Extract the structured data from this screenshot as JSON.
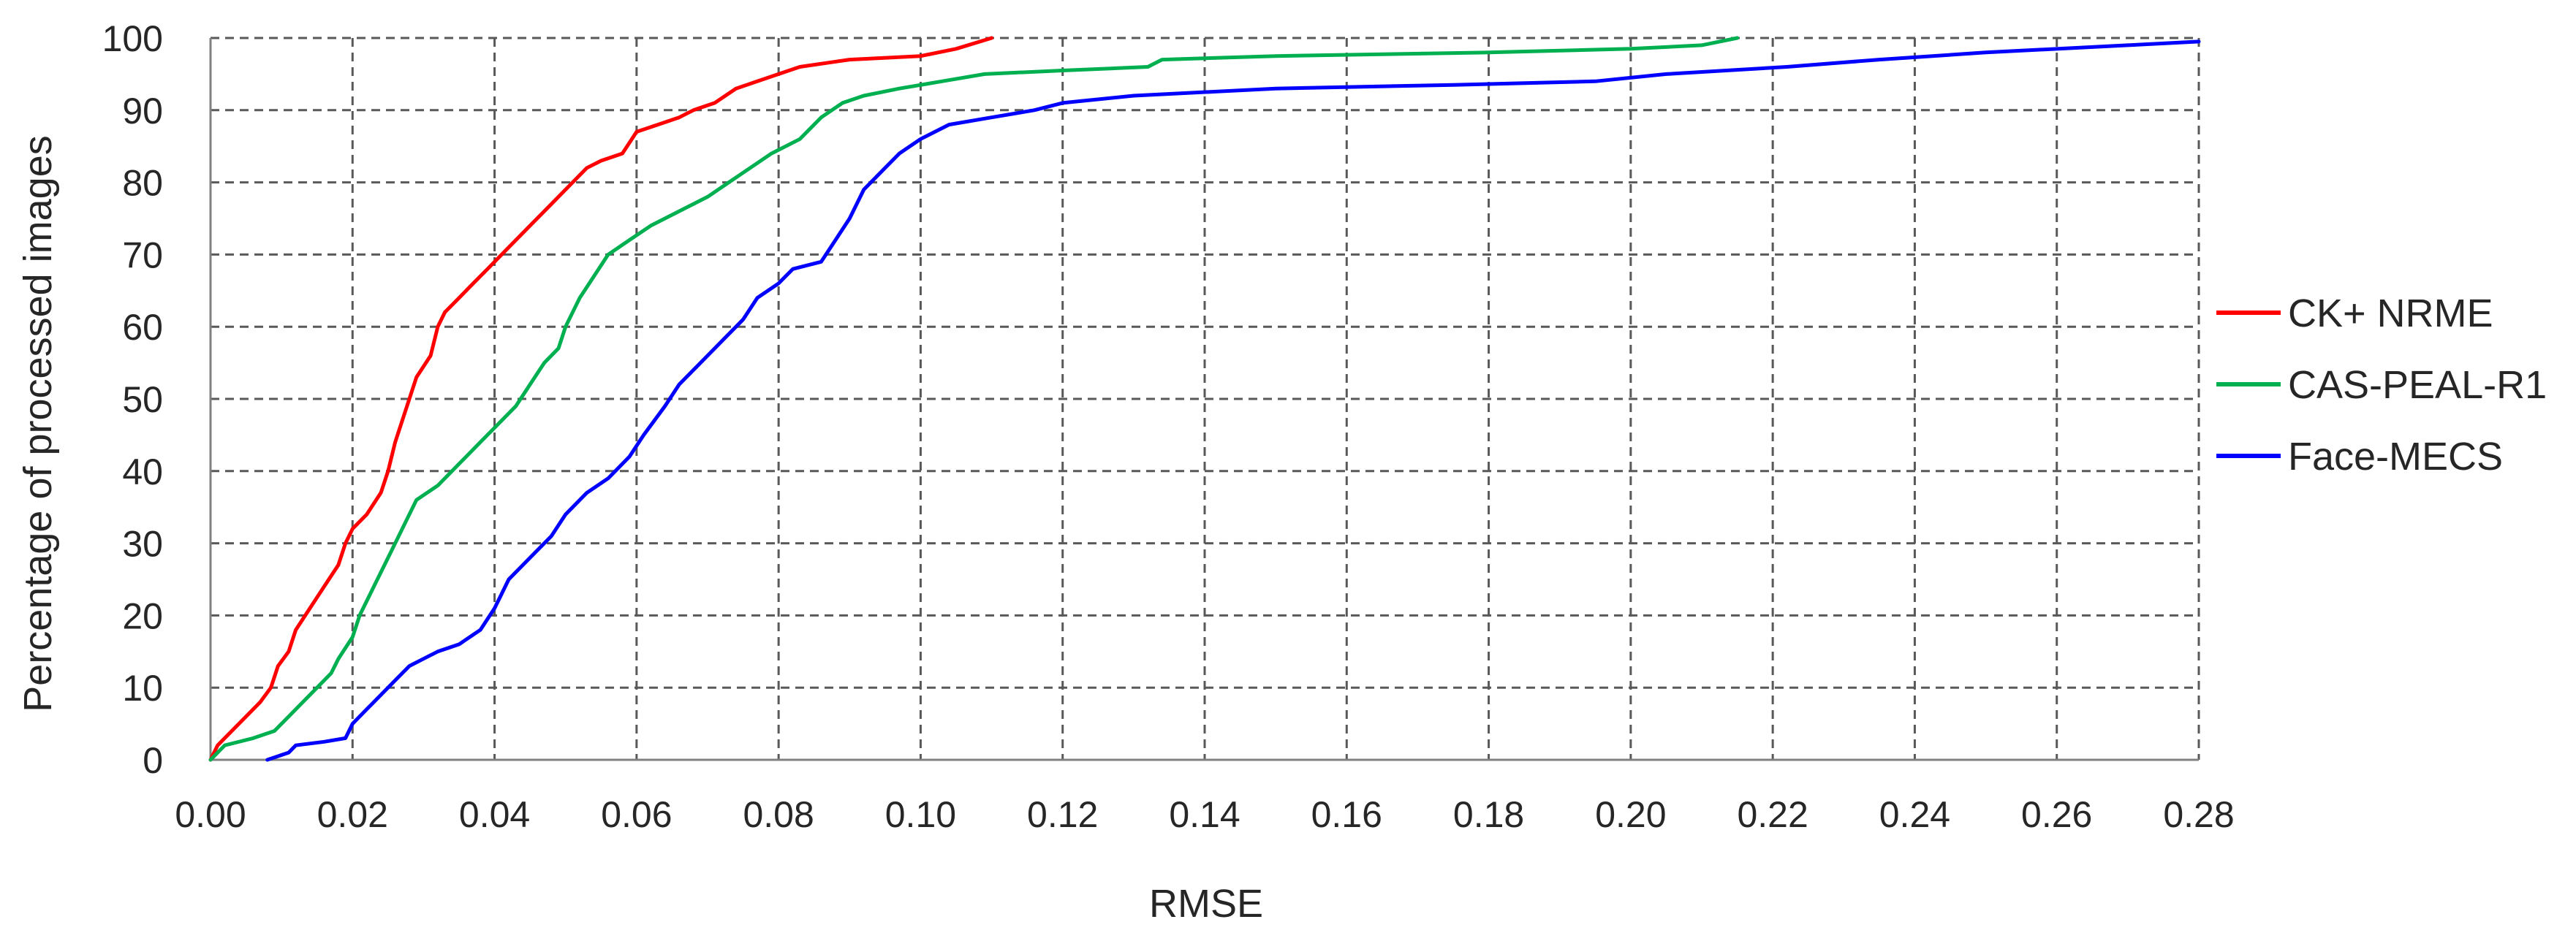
{
  "chart_data": {
    "type": "line",
    "title": "",
    "xlabel": "RMSE",
    "ylabel": "Percentage of processed images",
    "xlim": [
      0,
      0.28
    ],
    "ylim": [
      0,
      100
    ],
    "x_ticks": [
      0,
      0.02,
      0.04,
      0.06,
      0.08,
      0.1,
      0.12,
      0.14,
      0.16,
      0.18,
      0.2,
      0.22,
      0.24,
      0.26,
      0.28
    ],
    "x_tick_labels": [
      "0.00",
      "0.02",
      "0.04",
      "0.06",
      "0.08",
      "0.10",
      "0.12",
      "0.14",
      "0.16",
      "0.18",
      "0.20",
      "0.22",
      "0.24",
      "0.26",
      "0.28"
    ],
    "y_ticks": [
      0,
      10,
      20,
      30,
      40,
      50,
      60,
      70,
      80,
      90,
      100
    ],
    "y_tick_labels": [
      "0",
      "10",
      "20",
      "30",
      "40",
      "50",
      "60",
      "70",
      "80",
      "90",
      "100"
    ],
    "grid": true,
    "grid_style": "dashed",
    "legend_position": "right",
    "series": [
      {
        "name": "CK+ NRME",
        "color": "#ff0000",
        "points": [
          [
            0.0,
            0
          ],
          [
            0.001,
            2
          ],
          [
            0.003,
            4
          ],
          [
            0.005,
            6
          ],
          [
            0.007,
            8
          ],
          [
            0.0085,
            10
          ],
          [
            0.0095,
            13
          ],
          [
            0.011,
            15
          ],
          [
            0.012,
            18
          ],
          [
            0.014,
            21
          ],
          [
            0.016,
            24
          ],
          [
            0.018,
            27
          ],
          [
            0.019,
            30
          ],
          [
            0.02,
            32
          ],
          [
            0.022,
            34
          ],
          [
            0.024,
            37
          ],
          [
            0.025,
            40
          ],
          [
            0.026,
            44
          ],
          [
            0.027,
            47
          ],
          [
            0.028,
            50
          ],
          [
            0.029,
            53
          ],
          [
            0.031,
            56
          ],
          [
            0.032,
            60
          ],
          [
            0.033,
            62
          ],
          [
            0.035,
            64
          ],
          [
            0.037,
            66
          ],
          [
            0.039,
            68
          ],
          [
            0.041,
            70
          ],
          [
            0.043,
            72
          ],
          [
            0.045,
            74
          ],
          [
            0.047,
            76
          ],
          [
            0.049,
            78
          ],
          [
            0.051,
            80
          ],
          [
            0.053,
            82
          ],
          [
            0.055,
            83
          ],
          [
            0.058,
            84
          ],
          [
            0.06,
            87
          ],
          [
            0.063,
            88
          ],
          [
            0.066,
            89
          ],
          [
            0.068,
            90
          ],
          [
            0.071,
            91
          ],
          [
            0.074,
            93
          ],
          [
            0.077,
            94
          ],
          [
            0.08,
            95
          ],
          [
            0.083,
            96
          ],
          [
            0.09,
            97
          ],
          [
            0.1,
            97.5
          ],
          [
            0.105,
            98.5
          ],
          [
            0.11,
            100
          ]
        ]
      },
      {
        "name": "CAS-PEAL-R1",
        "color": "#00b050",
        "points": [
          [
            0.0,
            0
          ],
          [
            0.002,
            2
          ],
          [
            0.006,
            3
          ],
          [
            0.009,
            4
          ],
          [
            0.011,
            6
          ],
          [
            0.013,
            8
          ],
          [
            0.015,
            10
          ],
          [
            0.017,
            12
          ],
          [
            0.018,
            14
          ],
          [
            0.02,
            17
          ],
          [
            0.021,
            20
          ],
          [
            0.023,
            24
          ],
          [
            0.025,
            28
          ],
          [
            0.027,
            32
          ],
          [
            0.029,
            36
          ],
          [
            0.032,
            38
          ],
          [
            0.035,
            41
          ],
          [
            0.038,
            44
          ],
          [
            0.041,
            47
          ],
          [
            0.043,
            49
          ],
          [
            0.045,
            52
          ],
          [
            0.047,
            55
          ],
          [
            0.049,
            57
          ],
          [
            0.05,
            60
          ],
          [
            0.052,
            64
          ],
          [
            0.054,
            67
          ],
          [
            0.056,
            70
          ],
          [
            0.059,
            72
          ],
          [
            0.062,
            74
          ],
          [
            0.066,
            76
          ],
          [
            0.07,
            78
          ],
          [
            0.073,
            80
          ],
          [
            0.076,
            82
          ],
          [
            0.079,
            84
          ],
          [
            0.083,
            86
          ],
          [
            0.086,
            89
          ],
          [
            0.089,
            91
          ],
          [
            0.092,
            92
          ],
          [
            0.097,
            93
          ],
          [
            0.103,
            94
          ],
          [
            0.109,
            95
          ],
          [
            0.12,
            95.5
          ],
          [
            0.132,
            96
          ],
          [
            0.134,
            97
          ],
          [
            0.15,
            97.5
          ],
          [
            0.18,
            98
          ],
          [
            0.2,
            98.5
          ],
          [
            0.21,
            99
          ],
          [
            0.215,
            100
          ]
        ]
      },
      {
        "name": "Face-MECS",
        "color": "#0000ff",
        "points": [
          [
            0.008,
            0
          ],
          [
            0.011,
            1
          ],
          [
            0.012,
            2
          ],
          [
            0.016,
            2.5
          ],
          [
            0.019,
            3
          ],
          [
            0.02,
            5
          ],
          [
            0.022,
            7
          ],
          [
            0.024,
            9
          ],
          [
            0.026,
            11
          ],
          [
            0.028,
            13
          ],
          [
            0.03,
            14
          ],
          [
            0.032,
            15
          ],
          [
            0.035,
            16
          ],
          [
            0.038,
            18
          ],
          [
            0.04,
            21
          ],
          [
            0.042,
            25
          ],
          [
            0.045,
            28
          ],
          [
            0.048,
            31
          ],
          [
            0.05,
            34
          ],
          [
            0.053,
            37
          ],
          [
            0.056,
            39
          ],
          [
            0.059,
            42
          ],
          [
            0.061,
            45
          ],
          [
            0.064,
            49
          ],
          [
            0.066,
            52
          ],
          [
            0.069,
            55
          ],
          [
            0.072,
            58
          ],
          [
            0.075,
            61
          ],
          [
            0.077,
            64
          ],
          [
            0.08,
            66
          ],
          [
            0.082,
            68
          ],
          [
            0.086,
            69
          ],
          [
            0.088,
            72
          ],
          [
            0.09,
            75
          ],
          [
            0.092,
            79
          ],
          [
            0.095,
            82
          ],
          [
            0.097,
            84
          ],
          [
            0.1,
            86
          ],
          [
            0.104,
            88
          ],
          [
            0.11,
            89
          ],
          [
            0.116,
            90
          ],
          [
            0.12,
            91
          ],
          [
            0.13,
            92
          ],
          [
            0.15,
            93
          ],
          [
            0.175,
            93.5
          ],
          [
            0.195,
            94
          ],
          [
            0.205,
            95
          ],
          [
            0.222,
            96
          ],
          [
            0.235,
            97
          ],
          [
            0.25,
            98
          ],
          [
            0.27,
            99
          ],
          [
            0.28,
            99.5
          ]
        ]
      }
    ]
  }
}
